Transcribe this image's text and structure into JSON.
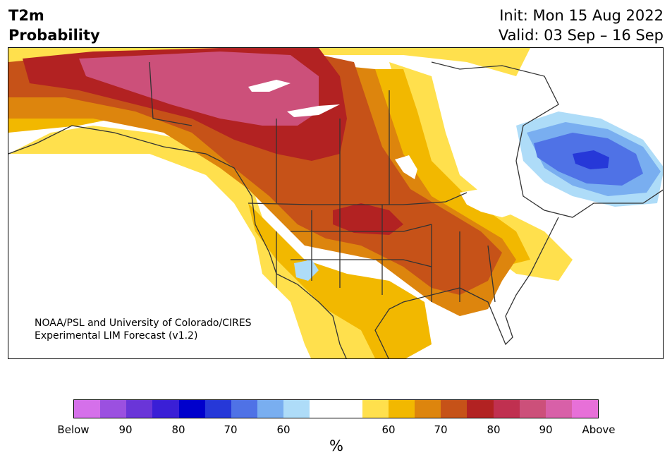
{
  "header": {
    "title_line1": "T2m",
    "title_line2": "Probability",
    "init_label": "Init: Mon 15 Aug 2022",
    "valid_label": "Valid: 03 Sep – 16 Sep"
  },
  "credit": {
    "line1": "NOAA/PSL and University of Colorado/CIRES",
    "line2": "Experimental LIM Forecast (v1.2)"
  },
  "colorbar": {
    "colors": [
      "#d570ea",
      "#9b50e0",
      "#6a35d8",
      "#3a1fd6",
      "#0000cc",
      "#2638d8",
      "#4f72e6",
      "#79aef0",
      "#aedcf8",
      "#ffffff",
      "#ffffff",
      "#ffe04d",
      "#f2b800",
      "#dd850d",
      "#c65218",
      "#b22222",
      "#c03050",
      "#cc507a",
      "#d860a8",
      "#e770d8"
    ],
    "ticks": [
      {
        "label": "Below"
      },
      {
        "label": "90"
      },
      {
        "label": "80"
      },
      {
        "label": "70"
      },
      {
        "label": "60"
      },
      {
        "label": "60"
      },
      {
        "label": "70"
      },
      {
        "label": "80"
      },
      {
        "label": "90"
      },
      {
        "label": "Above"
      }
    ],
    "unit": "%"
  }
}
